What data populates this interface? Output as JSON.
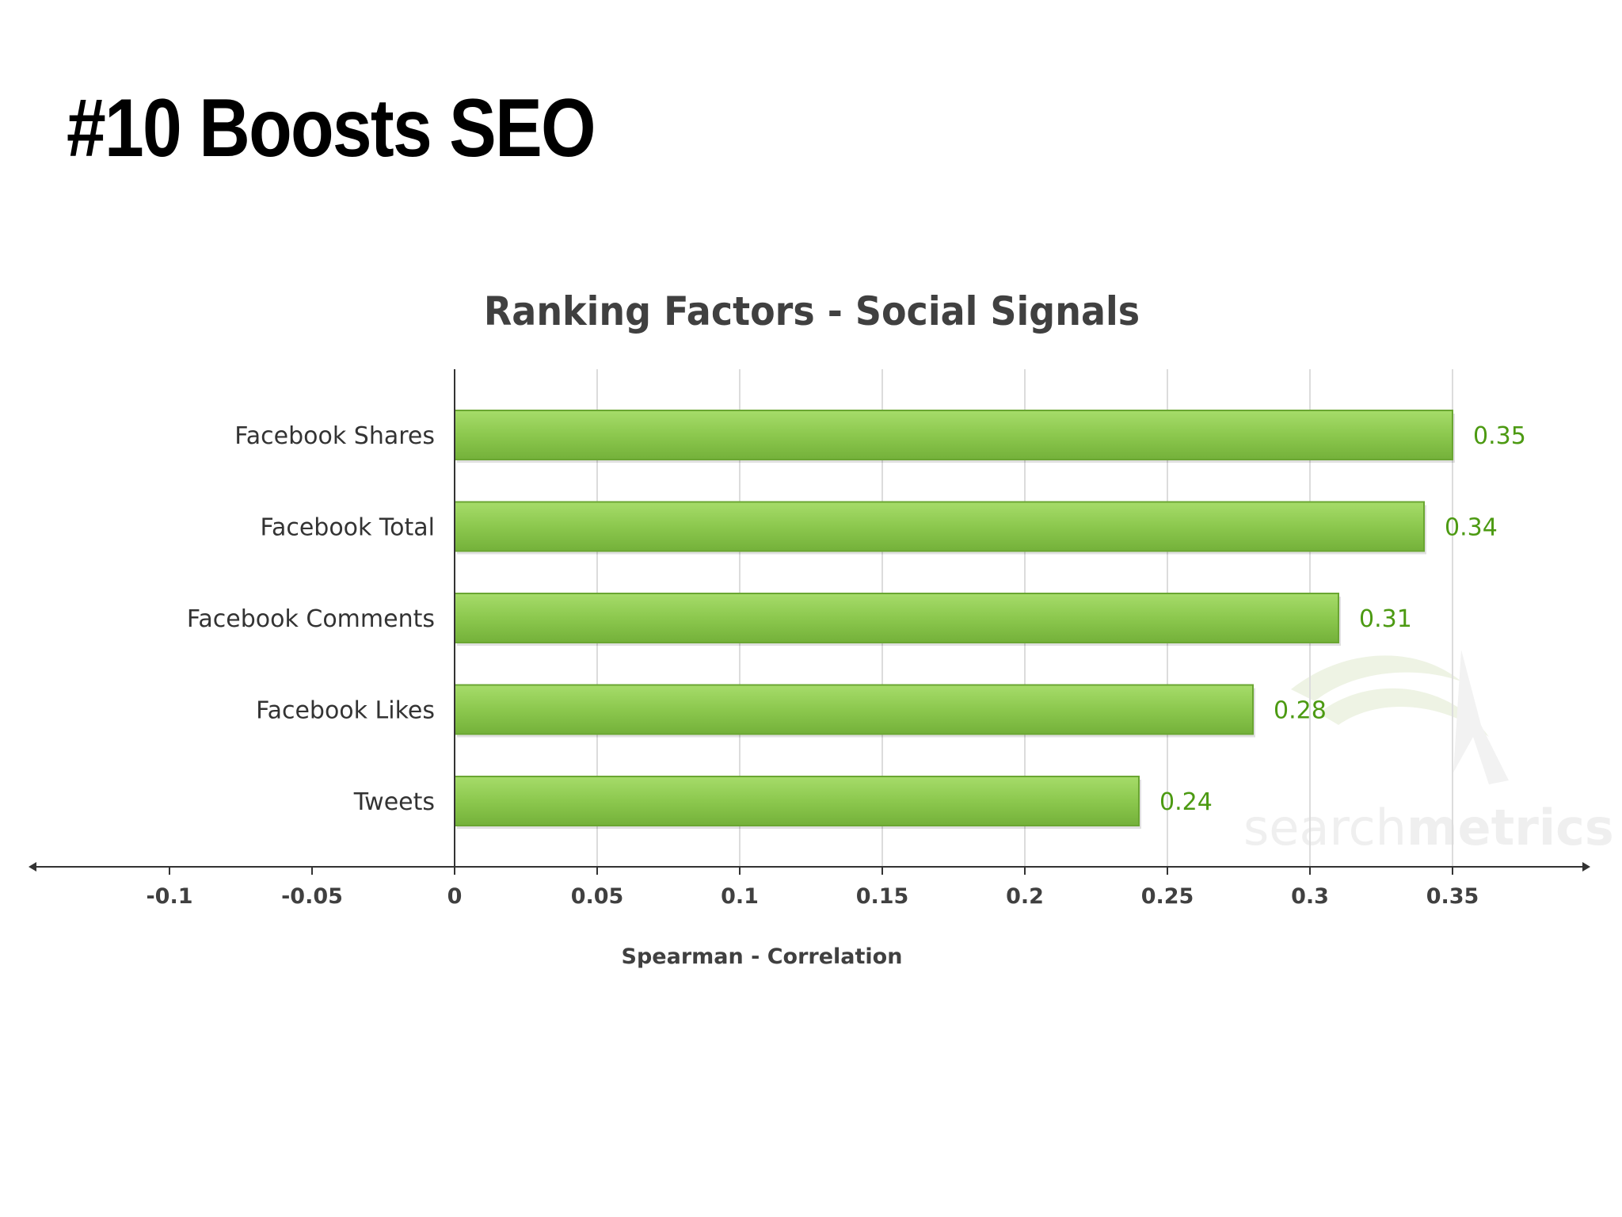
{
  "slide": {
    "title": "#10 Boosts SEO"
  },
  "watermark": {
    "text_light": "search",
    "text_bold": "metrics"
  },
  "colors": {
    "bar_fill": "#8dc84f",
    "bar_border": "#6aa632",
    "value_label": "#4c9a12",
    "axis": "#333333",
    "grid": "#dcdcdc",
    "text": "#333333"
  },
  "chart_data": {
    "type": "bar",
    "orientation": "horizontal",
    "title": "Ranking Factors - Social Signals",
    "xlabel": "Spearman - Correlation",
    "ylabel": "",
    "categories": [
      "Facebook Shares",
      "Facebook Total",
      "Facebook Comments",
      "Facebook Likes",
      "Tweets"
    ],
    "values": [
      0.35,
      0.34,
      0.31,
      0.28,
      0.24
    ],
    "value_labels": [
      "0.35",
      "0.34",
      "0.31",
      "0.28",
      "0.24"
    ],
    "xlim": [
      -0.15,
      0.4
    ],
    "xticks": [
      -0.1,
      -0.05,
      0,
      0.05,
      0.1,
      0.15,
      0.2,
      0.25,
      0.3,
      0.35
    ],
    "xtick_labels": [
      "-0.1",
      "-0.05",
      "0",
      "0.05",
      "0.1",
      "0.15",
      "0.2",
      "0.25",
      "0.3",
      "0.35"
    ],
    "grid": true,
    "legend": "none"
  }
}
